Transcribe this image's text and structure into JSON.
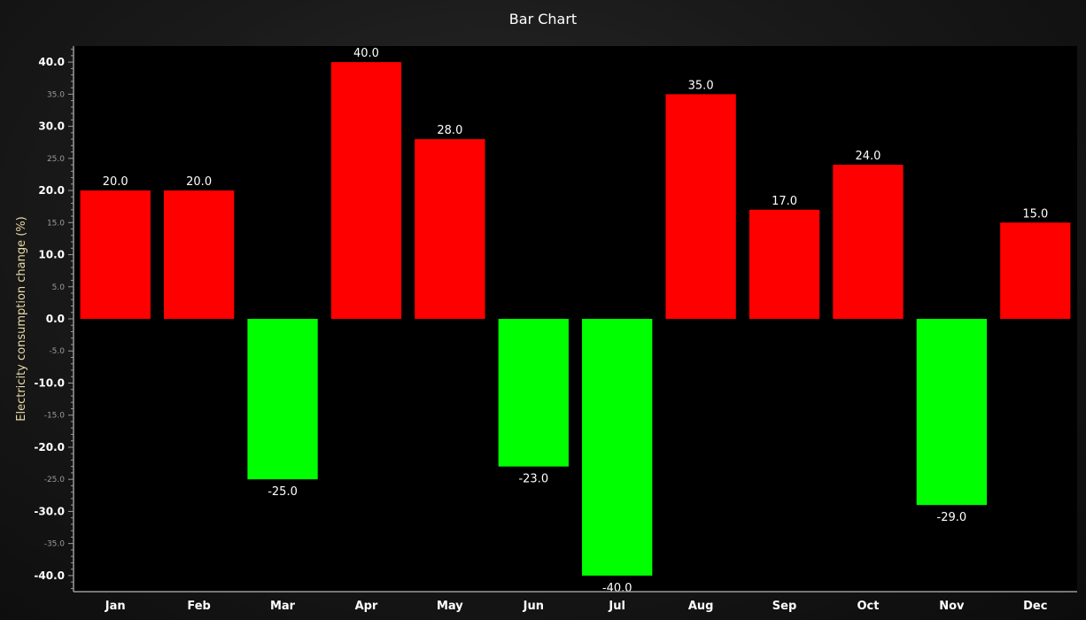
{
  "chart_data": {
    "type": "bar",
    "title": "Bar Chart",
    "xlabel": "",
    "ylabel": "Electricity consumption change (%)",
    "categories": [
      "Jan",
      "Feb",
      "Mar",
      "Apr",
      "May",
      "Jun",
      "Jul",
      "Aug",
      "Sep",
      "Oct",
      "Nov",
      "Dec"
    ],
    "values": [
      20.0,
      20.0,
      -25.0,
      40.0,
      28.0,
      -23.0,
      -40.0,
      35.0,
      17.0,
      24.0,
      -29.0,
      15.0
    ],
    "data_labels": [
      "20.0",
      "20.0",
      "-25.0",
      "40.0",
      "28.0",
      "-23.0",
      "-40.0",
      "35.0",
      "17.0",
      "24.0",
      "-29.0",
      "15.0"
    ],
    "ylim": [
      -42.5,
      42.5
    ],
    "major_ticks": [
      "40.0",
      "30.0",
      "20.0",
      "10.0",
      "0.0",
      "-10.0",
      "-20.0",
      "-30.0",
      "-40.0"
    ],
    "minor_ticks": [
      "35.0",
      "25.0",
      "15.0",
      "5.0",
      "-5.0",
      "-15.0",
      "-25.0",
      "-35.0"
    ],
    "grid": false,
    "legend": "none",
    "colors": {
      "positive": "#ff0000",
      "negative": "#00ff00",
      "plot_background": "#000000",
      "axis": "#9a9a9a"
    }
  }
}
